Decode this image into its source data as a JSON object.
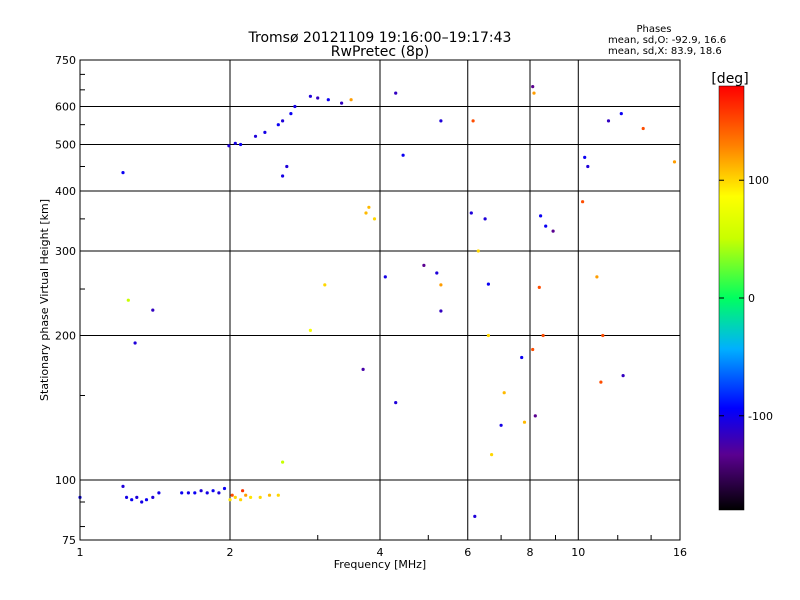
{
  "chart_data": {
    "type": "scatter",
    "title": "Tromsø 20121109 19:16:00–19:17:43",
    "subtitle": "RwPretec (8p)",
    "xlabel": "Frequency [MHz]",
    "ylabel": "Stationary phase Virtual Height [km]",
    "x_scale": "log",
    "y_scale": "log",
    "xlim": [
      1,
      16
    ],
    "ylim": [
      75,
      750
    ],
    "x_ticks": [
      1,
      2,
      4,
      6,
      8,
      10,
      16
    ],
    "y_ticks": [
      75,
      100,
      200,
      300,
      400,
      500,
      600,
      750
    ],
    "grid": true,
    "colorbar": {
      "label": "[deg]",
      "range": [
        -180,
        180
      ],
      "ticks": [
        100,
        0,
        -100
      ]
    },
    "phase_stats": {
      "title": "Phases",
      "line_o": "mean, sd,O: -92.9, 16.6",
      "line_x": "mean, sd,X:  83.9, 18.6"
    },
    "points": [
      [
        1.0,
        92,
        -100
      ],
      [
        1.22,
        97,
        -110
      ],
      [
        1.24,
        92,
        -105
      ],
      [
        1.27,
        91,
        -100
      ],
      [
        1.3,
        92,
        -110
      ],
      [
        1.33,
        90,
        -105
      ],
      [
        1.36,
        91,
        -100
      ],
      [
        1.4,
        92,
        -110
      ],
      [
        1.44,
        94,
        -105
      ],
      [
        1.6,
        94,
        -100
      ],
      [
        1.65,
        94,
        -105
      ],
      [
        1.7,
        94,
        -100
      ],
      [
        1.75,
        95,
        -110
      ],
      [
        1.8,
        94,
        -105
      ],
      [
        1.85,
        95,
        -100
      ],
      [
        1.9,
        94,
        -110
      ],
      [
        1.95,
        96,
        -100
      ],
      [
        2.0,
        91,
        95
      ],
      [
        2.05,
        92,
        100
      ],
      [
        2.1,
        91,
        100
      ],
      [
        2.15,
        93,
        120
      ],
      [
        2.2,
        92,
        95
      ],
      [
        2.3,
        92,
        100
      ],
      [
        2.4,
        93,
        110
      ],
      [
        2.5,
        93,
        100
      ],
      [
        2.02,
        93,
        150
      ],
      [
        2.12,
        95,
        160
      ],
      [
        2.55,
        109,
        50
      ],
      [
        1.25,
        237,
        50
      ],
      [
        1.22,
        437,
        -100
      ],
      [
        1.29,
        193,
        -110
      ],
      [
        1.4,
        226,
        -120
      ],
      [
        1.99,
        497,
        -110
      ],
      [
        2.05,
        503,
        -105
      ],
      [
        2.1,
        500,
        -100
      ],
      [
        2.25,
        520,
        -110
      ],
      [
        2.35,
        530,
        -105
      ],
      [
        2.5,
        550,
        -100
      ],
      [
        2.55,
        560,
        -110
      ],
      [
        2.65,
        580,
        -100
      ],
      [
        2.7,
        600,
        -105
      ],
      [
        2.9,
        630,
        -110
      ],
      [
        3.0,
        625,
        -120
      ],
      [
        3.15,
        620,
        -100
      ],
      [
        3.35,
        610,
        -120
      ],
      [
        3.5,
        620,
        120
      ],
      [
        2.55,
        430,
        -105
      ],
      [
        2.6,
        450,
        -110
      ],
      [
        4.3,
        640,
        -120
      ],
      [
        4.45,
        475,
        -100
      ],
      [
        5.3,
        560,
        -110
      ],
      [
        6.15,
        560,
        150
      ],
      [
        8.1,
        660,
        -140
      ],
      [
        8.15,
        640,
        120
      ],
      [
        10.3,
        470,
        -100
      ],
      [
        10.45,
        450,
        -110
      ],
      [
        11.5,
        560,
        -120
      ],
      [
        12.2,
        580,
        -100
      ],
      [
        13.5,
        540,
        150
      ],
      [
        15.6,
        460,
        120
      ],
      [
        6.1,
        360,
        -110
      ],
      [
        6.5,
        350,
        -110
      ],
      [
        6.3,
        300,
        100
      ],
      [
        8.4,
        355,
        -100
      ],
      [
        8.6,
        338,
        -100
      ],
      [
        8.9,
        330,
        -140
      ],
      [
        10.2,
        380,
        150
      ],
      [
        4.1,
        265,
        -105
      ],
      [
        4.9,
        280,
        -140
      ],
      [
        5.2,
        270,
        -110
      ],
      [
        5.3,
        255,
        120
      ],
      [
        5.3,
        225,
        -120
      ],
      [
        6.6,
        256,
        -100
      ],
      [
        8.35,
        252,
        150
      ],
      [
        8.5,
        200,
        150
      ],
      [
        10.9,
        265,
        120
      ],
      [
        11.2,
        200,
        150
      ],
      [
        3.75,
        360,
        110
      ],
      [
        3.8,
        370,
        110
      ],
      [
        3.9,
        350,
        100
      ],
      [
        3.1,
        255,
        100
      ],
      [
        2.9,
        205,
        80
      ],
      [
        6.6,
        200,
        100
      ],
      [
        8.1,
        187,
        150
      ],
      [
        7.7,
        180,
        -100
      ],
      [
        11.1,
        160,
        150
      ],
      [
        12.3,
        165,
        -120
      ],
      [
        4.3,
        145,
        -110
      ],
      [
        7.1,
        152,
        110
      ],
      [
        7.8,
        132,
        110
      ],
      [
        7.0,
        130,
        -105
      ],
      [
        8.2,
        136,
        -140
      ],
      [
        6.7,
        113,
        100
      ],
      [
        6.2,
        84,
        -110
      ],
      [
        3.7,
        170,
        -130
      ]
    ]
  }
}
